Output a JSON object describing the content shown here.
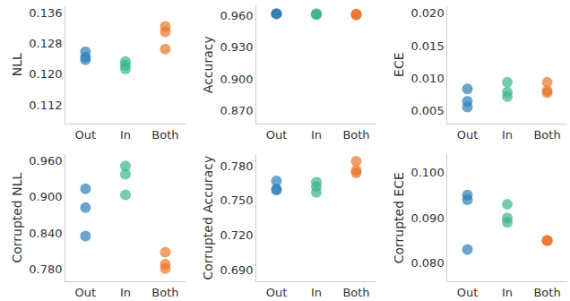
{
  "chart_data": [
    {
      "type": "scatter",
      "ylabel": "NLL",
      "categories": [
        "Out",
        "In",
        "Both"
      ],
      "colors": [
        "#2c7fb8",
        "#3bb58f",
        "#e8762b"
      ],
      "marker": "circle",
      "grid": false,
      "values": [
        [
          0.1259,
          0.1245,
          0.1238
        ],
        [
          0.1233,
          0.1224,
          0.1214
        ],
        [
          0.1325,
          0.1311,
          0.1266
        ]
      ],
      "ylim": [
        0.107,
        0.138
      ],
      "yticks": [
        0.112,
        {
          "value": 0.12,
          "label": "0.120"
        },
        0.128,
        0.136
      ]
    },
    {
      "type": "scatter",
      "ylabel": "Accuracy",
      "categories": [
        "Out",
        "In",
        "Both"
      ],
      "colors": [
        "#2c7fb8",
        "#3bb58f",
        "#e8762b"
      ],
      "marker": "circle",
      "grid": false,
      "values": [
        [
          0.962,
          0.962,
          0.962
        ],
        [
          0.962,
          0.961,
          0.962
        ],
        [
          0.961,
          0.961,
          0.962
        ]
      ],
      "ylim": [
        0.857,
        0.97
      ],
      "yticks": [
        {
          "value": 0.87,
          "label": "0.870"
        },
        {
          "value": 0.9,
          "label": "0.900"
        },
        {
          "value": 0.93,
          "label": "0.930"
        },
        {
          "value": 0.96,
          "label": "0.960"
        }
      ]
    },
    {
      "type": "scatter",
      "ylabel": "ECE",
      "categories": [
        "Out",
        "In",
        "Both"
      ],
      "colors": [
        "#2c7fb8",
        "#3bb58f",
        "#e8762b"
      ],
      "marker": "circle",
      "grid": false,
      "values": [
        [
          0.0084,
          0.0065,
          0.0056
        ],
        [
          0.0094,
          0.0079,
          0.0072
        ],
        [
          0.0094,
          0.0081,
          0.0078
        ]
      ],
      "ylim": [
        0.003,
        0.0212
      ],
      "yticks": [
        0.005,
        {
          "value": 0.01,
          "label": "0.010"
        },
        0.015,
        {
          "value": 0.02,
          "label": "0.020"
        }
      ]
    },
    {
      "type": "scatter",
      "ylabel": "Corrupted NLL",
      "categories": [
        "Out",
        "In",
        "Both"
      ],
      "colors": [
        "#2c7fb8",
        "#3bb58f",
        "#e8762b"
      ],
      "marker": "circle",
      "grid": false,
      "values": [
        [
          0.913,
          0.882,
          0.835
        ],
        [
          0.951,
          0.937,
          0.903
        ],
        [
          0.808,
          0.788,
          0.781
        ]
      ],
      "ylim": [
        0.76,
        0.97
      ],
      "yticks": [
        {
          "value": 0.78,
          "label": "0.780"
        },
        {
          "value": 0.84,
          "label": "0.840"
        },
        {
          "value": 0.9,
          "label": "0.900"
        },
        {
          "value": 0.96,
          "label": "0.960"
        }
      ]
    },
    {
      "type": "scatter",
      "ylabel": "Corrupted Accuracy",
      "categories": [
        "Out",
        "In",
        "Both"
      ],
      "colors": [
        "#2c7fb8",
        "#3bb58f",
        "#e8762b"
      ],
      "marker": "circle",
      "grid": false,
      "values": [
        [
          0.767,
          0.76,
          0.759
        ],
        [
          0.766,
          0.762,
          0.757
        ],
        [
          0.784,
          0.776,
          0.774
        ]
      ],
      "ylim": [
        0.68,
        0.79
      ],
      "yticks": [
        {
          "value": 0.69,
          "label": "0.690"
        },
        {
          "value": 0.72,
          "label": "0.720"
        },
        {
          "value": 0.75,
          "label": "0.750"
        },
        {
          "value": 0.78,
          "label": "0.780"
        }
      ]
    },
    {
      "type": "scatter",
      "ylabel": "Corrupted ECE",
      "categories": [
        "Out",
        "In",
        "Both"
      ],
      "colors": [
        "#2c7fb8",
        "#3bb58f",
        "#e8762b"
      ],
      "marker": "circle",
      "grid": false,
      "values": [
        [
          0.095,
          0.094,
          0.083
        ],
        [
          0.093,
          0.09,
          0.089
        ],
        [
          0.085,
          0.085,
          0.085
        ]
      ],
      "ylim": [
        0.076,
        0.104
      ],
      "yticks": [
        {
          "value": 0.08,
          "label": "0.080"
        },
        {
          "value": 0.09,
          "label": "0.090"
        },
        {
          "value": 0.1,
          "label": "0.100"
        }
      ]
    }
  ]
}
